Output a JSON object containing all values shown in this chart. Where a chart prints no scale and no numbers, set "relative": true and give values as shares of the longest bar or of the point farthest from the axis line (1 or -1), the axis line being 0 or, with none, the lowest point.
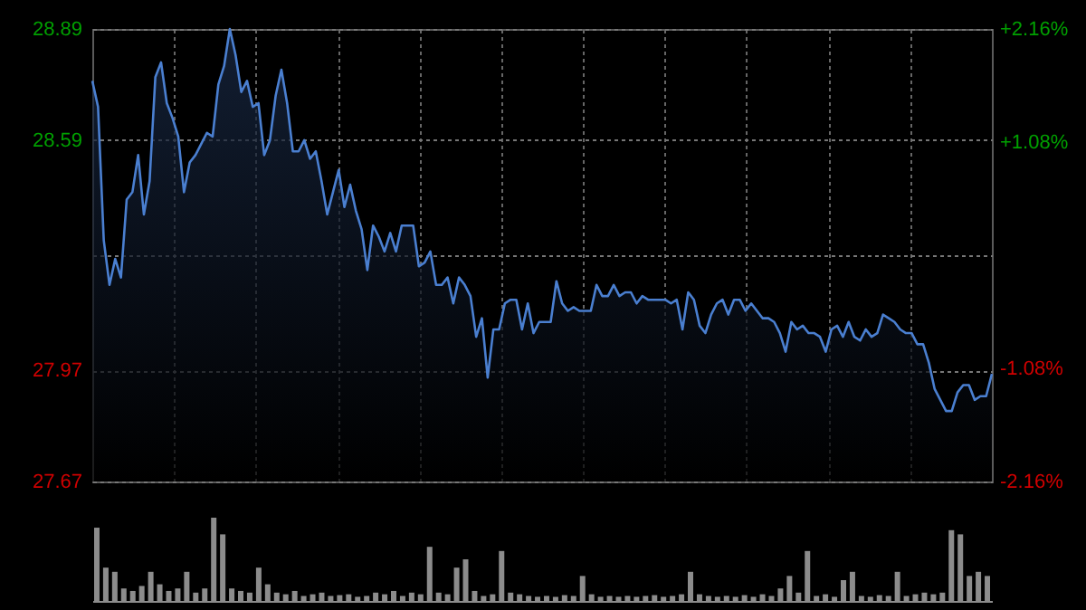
{
  "chart_data": [
    {
      "type": "area",
      "categories": [
        null,
        null,
        null,
        null,
        null,
        null,
        null,
        null,
        null,
        null,
        null,
        null,
        null,
        null,
        null,
        null,
        null,
        null,
        null,
        null,
        null,
        null,
        null,
        null,
        null,
        null,
        null,
        null,
        null,
        null,
        null,
        null,
        null,
        null,
        null,
        null,
        null,
        null,
        null,
        null,
        null,
        null,
        null,
        null,
        null,
        null,
        null,
        null,
        null,
        null,
        null,
        null,
        null,
        null,
        null,
        null,
        null,
        null,
        null,
        null,
        null,
        null,
        null,
        null,
        null,
        null,
        null,
        null,
        null,
        null,
        null,
        null,
        null,
        null,
        null,
        null,
        null,
        null,
        null,
        null,
        null,
        null,
        null,
        null,
        null,
        null,
        null,
        null,
        null,
        null,
        null,
        null,
        null,
        null,
        null,
        null,
        null,
        null,
        null,
        null,
        null,
        null,
        null,
        null,
        null,
        null,
        null,
        null,
        null,
        null,
        null,
        null,
        null,
        null,
        null,
        null,
        null,
        null,
        null,
        null,
        null,
        null,
        null,
        null,
        null,
        null,
        null,
        null,
        null,
        null,
        null,
        null,
        null,
        null,
        null,
        null,
        null,
        null,
        null,
        null,
        null,
        null,
        null,
        null,
        null,
        null,
        null,
        null,
        null,
        null,
        null,
        null,
        null,
        null,
        null,
        null,
        null,
        null
      ],
      "series": [
        {
          "color": "#4a7fd0",
          "values": [
            28.75,
            28.68,
            28.32,
            28.2,
            28.27,
            28.22,
            28.43,
            28.45,
            28.55,
            28.39,
            28.48,
            28.76,
            28.8,
            28.69,
            28.65,
            28.6,
            28.45,
            28.53,
            28.55,
            28.58,
            28.61,
            28.6,
            28.74,
            28.79,
            28.89,
            28.82,
            28.72,
            28.75,
            28.68,
            28.69,
            28.55,
            28.59,
            28.71,
            28.78,
            28.69,
            28.56,
            28.56,
            28.59,
            28.54,
            28.56,
            28.48,
            28.39,
            28.45,
            28.51,
            28.41,
            28.47,
            28.4,
            28.35,
            28.24,
            28.36,
            28.33,
            28.29,
            28.34,
            28.29,
            28.36,
            28.36,
            28.36,
            28.25,
            28.26,
            28.29,
            28.2,
            28.2,
            28.22,
            28.15,
            28.22,
            28.2,
            28.17,
            28.06,
            28.11,
            27.95,
            28.08,
            28.08,
            28.15,
            28.16,
            28.16,
            28.08,
            28.15,
            28.07,
            28.1,
            28.1,
            28.1,
            28.21,
            28.15,
            28.13,
            28.14,
            28.13,
            28.13,
            28.13,
            28.2,
            28.17,
            28.17,
            28.2,
            28.17,
            28.18,
            28.18,
            28.15,
            28.17,
            28.16,
            28.16,
            28.16,
            28.16,
            28.15,
            28.16,
            28.08,
            28.18,
            28.16,
            28.09,
            28.07,
            28.12,
            28.15,
            28.16,
            28.12,
            28.16,
            28.16,
            28.13,
            28.15,
            28.13,
            28.11,
            28.11,
            28.1,
            28.07,
            28.02,
            28.1,
            28.08,
            28.09,
            28.07,
            28.07,
            28.06,
            28.02,
            28.08,
            28.09,
            28.06,
            28.1,
            28.06,
            28.05,
            28.08,
            28.06,
            28.07,
            28.12,
            28.11,
            28.1,
            28.08,
            28.07,
            28.07,
            28.04,
            28.04,
            27.99,
            27.92,
            27.89,
            27.86,
            27.86,
            27.91,
            27.93,
            27.93,
            27.89,
            27.9,
            27.9,
            27.96
          ]
        }
      ],
      "ylim": [
        27.67,
        28.89
      ],
      "yticks": [
        27.67,
        27.97,
        {
          "value": 28.28,
          "label": null
        },
        28.59,
        28.89
      ],
      "y2lim": [
        -2.16,
        2.16
      ],
      "y2ticks": [
        {
          "value": -2.16,
          "label": "-2.16%"
        },
        {
          "value": -1.08,
          "label": "-1.08%"
        },
        {
          "value": 0,
          "label": null
        },
        {
          "value": 1.08,
          "label": "+1.08%"
        },
        {
          "value": 2.16,
          "label": "+2.16%"
        }
      ],
      "grid": true
    },
    {
      "type": "bar",
      "relative": true,
      "categories": [
        null,
        null,
        null,
        null,
        null,
        null,
        null,
        null,
        null,
        null,
        null,
        null,
        null,
        null,
        null,
        null,
        null,
        null,
        null,
        null,
        null,
        null,
        null,
        null,
        null,
        null,
        null,
        null,
        null,
        null,
        null,
        null,
        null,
        null,
        null,
        null,
        null,
        null,
        null,
        null,
        null,
        null,
        null,
        null,
        null,
        null,
        null,
        null,
        null,
        null,
        null,
        null,
        null,
        null,
        null,
        null,
        null,
        null,
        null,
        null,
        null,
        null,
        null,
        null,
        null,
        null,
        null,
        null,
        null,
        null,
        null,
        null,
        null,
        null,
        null,
        null,
        null,
        null,
        null,
        null,
        null,
        null,
        null,
        null,
        null,
        null,
        null,
        null,
        null,
        null,
        null,
        null,
        null,
        null,
        null,
        null,
        null,
        null,
        null,
        null
      ],
      "series": [
        {
          "color": "#8c8c8c",
          "values": [
            0.88,
            0.4,
            0.35,
            0.15,
            0.12,
            0.18,
            0.35,
            0.2,
            0.12,
            0.15,
            0.35,
            0.1,
            0.15,
            1.0,
            0.8,
            0.15,
            0.12,
            0.1,
            0.4,
            0.2,
            0.1,
            0.08,
            0.12,
            0.06,
            0.08,
            0.1,
            0.06,
            0.07,
            0.08,
            0.05,
            0.06,
            0.1,
            0.08,
            0.12,
            0.06,
            0.1,
            0.08,
            0.65,
            0.1,
            0.08,
            0.4,
            0.5,
            0.12,
            0.06,
            0.08,
            0.6,
            0.1,
            0.08,
            0.06,
            0.05,
            0.06,
            0.05,
            0.07,
            0.06,
            0.3,
            0.08,
            0.05,
            0.06,
            0.05,
            0.06,
            0.05,
            0.06,
            0.07,
            0.05,
            0.06,
            0.08,
            0.35,
            0.08,
            0.06,
            0.05,
            0.06,
            0.05,
            0.07,
            0.05,
            0.08,
            0.06,
            0.15,
            0.3,
            0.1,
            0.6,
            0.06,
            0.08,
            0.05,
            0.25,
            0.35,
            0.06,
            0.05,
            0.07,
            0.06,
            0.35,
            0.06,
            0.08,
            0.1,
            0.08,
            0.1,
            0.85,
            0.8,
            0.3,
            0.35,
            0.3
          ]
        }
      ]
    }
  ]
}
